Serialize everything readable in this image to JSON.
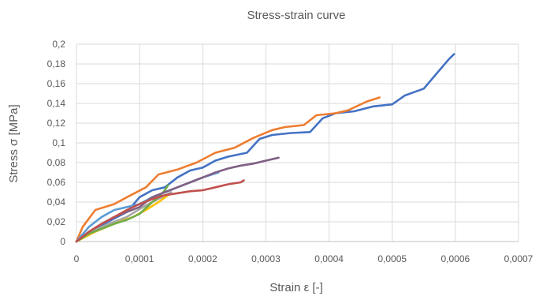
{
  "chart_data": {
    "type": "line",
    "title": "Stress-strain curve",
    "xlabel": "Strain ε [-]",
    "ylabel": "Stress σ [MPa]",
    "xlim": [
      0,
      0.0007
    ],
    "ylim": [
      0,
      0.2
    ],
    "x_ticks": [
      "0",
      "0,0001",
      "0,0002",
      "0,0003",
      "0,0004",
      "0,0005",
      "0,0006",
      "0,0007"
    ],
    "y_ticks": [
      "0",
      "0,02",
      "0,04",
      "0,06",
      "0,08",
      "0,1",
      "0,12",
      "0,14",
      "0,16",
      "0,18",
      "0,2"
    ],
    "grid": true,
    "legend": "none",
    "series": [
      {
        "color": "#4472C4",
        "points": [
          [
            0,
            0
          ],
          [
            2e-05,
            0.01
          ],
          [
            5e-05,
            0.02
          ],
          [
            8e-05,
            0.03
          ],
          [
            0.0001,
            0.045
          ],
          [
            0.00012,
            0.052
          ],
          [
            0.00014,
            0.055
          ],
          [
            0.00016,
            0.065
          ],
          [
            0.00018,
            0.072
          ],
          [
            0.0002,
            0.075
          ],
          [
            0.00022,
            0.082
          ],
          [
            0.00024,
            0.086
          ],
          [
            0.00027,
            0.09
          ],
          [
            0.00029,
            0.104
          ],
          [
            0.00031,
            0.108
          ],
          [
            0.00034,
            0.11
          ],
          [
            0.00037,
            0.111
          ],
          [
            0.00039,
            0.125
          ],
          [
            0.00041,
            0.13
          ],
          [
            0.00044,
            0.132
          ],
          [
            0.00047,
            0.137
          ],
          [
            0.0005,
            0.139
          ],
          [
            0.00052,
            0.148
          ],
          [
            0.00055,
            0.155
          ],
          [
            0.00057,
            0.17
          ],
          [
            0.00059,
            0.185
          ],
          [
            0.000598,
            0.19
          ]
        ]
      },
      {
        "color": "#ED7D31",
        "points": [
          [
            0,
            0
          ],
          [
            1e-05,
            0.015
          ],
          [
            3e-05,
            0.032
          ],
          [
            6e-05,
            0.038
          ],
          [
            8e-05,
            0.045
          ],
          [
            0.00011,
            0.055
          ],
          [
            0.00013,
            0.068
          ],
          [
            0.00016,
            0.073
          ],
          [
            0.00019,
            0.08
          ],
          [
            0.00022,
            0.09
          ],
          [
            0.00025,
            0.095
          ],
          [
            0.00028,
            0.105
          ],
          [
            0.00031,
            0.113
          ],
          [
            0.00033,
            0.116
          ],
          [
            0.00036,
            0.118
          ],
          [
            0.00038,
            0.128
          ],
          [
            0.00041,
            0.13
          ],
          [
            0.00043,
            0.133
          ],
          [
            0.00046,
            0.142
          ],
          [
            0.00048,
            0.146
          ]
        ]
      },
      {
        "color": "#A5A5A5",
        "points": [
          [
            0,
            0
          ],
          [
            2e-05,
            0.008
          ],
          [
            4e-05,
            0.015
          ],
          [
            6e-05,
            0.02
          ],
          [
            8e-05,
            0.025
          ],
          [
            0.0001,
            0.033
          ],
          [
            0.00012,
            0.04
          ],
          [
            0.000135,
            0.045
          ],
          [
            0.00015,
            0.05
          ]
        ]
      },
      {
        "color": "#FFC000",
        "points": [
          [
            0,
            0
          ],
          [
            3e-05,
            0.01
          ],
          [
            6e-05,
            0.018
          ],
          [
            9e-05,
            0.025
          ],
          [
            0.00011,
            0.032
          ],
          [
            0.00013,
            0.04
          ],
          [
            0.000145,
            0.047
          ]
        ]
      },
      {
        "color": "#5B9BD5",
        "points": [
          [
            0,
            0
          ],
          [
            2e-05,
            0.015
          ],
          [
            4e-05,
            0.025
          ],
          [
            6e-05,
            0.032
          ],
          [
            8e-05,
            0.035
          ],
          [
            0.0001,
            0.038
          ],
          [
            0.00012,
            0.045
          ],
          [
            0.00014,
            0.05
          ],
          [
            0.00016,
            0.055
          ],
          [
            0.00018,
            0.06
          ],
          [
            0.0002,
            0.065
          ],
          [
            0.000225,
            0.07
          ]
        ]
      },
      {
        "color": "#70AD47",
        "points": [
          [
            0,
            0
          ],
          [
            2e-05,
            0.008
          ],
          [
            4e-05,
            0.013
          ],
          [
            6e-05,
            0.018
          ],
          [
            8e-05,
            0.022
          ],
          [
            0.0001,
            0.028
          ],
          [
            0.00012,
            0.04
          ],
          [
            0.00013,
            0.045
          ],
          [
            0.00014,
            0.052
          ],
          [
            0.000145,
            0.057
          ]
        ]
      },
      {
        "color": "#7F6084",
        "points": [
          [
            0,
            0
          ],
          [
            2e-05,
            0.01
          ],
          [
            4e-05,
            0.018
          ],
          [
            6e-05,
            0.025
          ],
          [
            8e-05,
            0.03
          ],
          [
            0.0001,
            0.035
          ],
          [
            0.00012,
            0.045
          ],
          [
            0.00014,
            0.05
          ],
          [
            0.00016,
            0.055
          ],
          [
            0.00018,
            0.06
          ],
          [
            0.0002,
            0.065
          ],
          [
            0.00022,
            0.07
          ],
          [
            0.00024,
            0.074
          ],
          [
            0.00026,
            0.077
          ],
          [
            0.00028,
            0.079
          ],
          [
            0.0003,
            0.082
          ],
          [
            0.00032,
            0.085
          ]
        ]
      },
      {
        "color": "#C0504D",
        "points": [
          [
            0,
            0
          ],
          [
            2e-05,
            0.01
          ],
          [
            4e-05,
            0.018
          ],
          [
            6e-05,
            0.025
          ],
          [
            8e-05,
            0.032
          ],
          [
            0.0001,
            0.038
          ],
          [
            0.00012,
            0.043
          ],
          [
            0.00014,
            0.047
          ],
          [
            0.00016,
            0.049
          ],
          [
            0.00018,
            0.051
          ],
          [
            0.0002,
            0.052
          ],
          [
            0.00022,
            0.055
          ],
          [
            0.00024,
            0.058
          ],
          [
            0.00026,
            0.06
          ],
          [
            0.000265,
            0.062
          ]
        ]
      }
    ]
  }
}
